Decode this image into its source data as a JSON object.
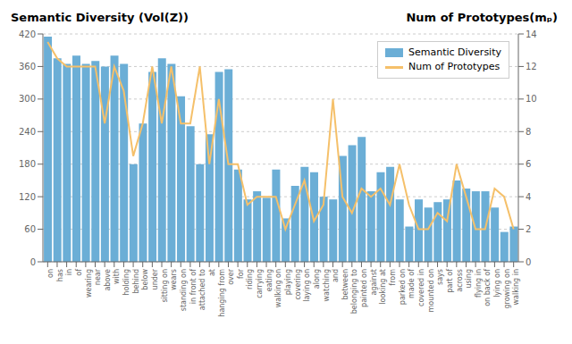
{
  "chart_data": {
    "type": "bar",
    "ylabel": "Semantic Diversity (Vol(Z))",
    "y2label": "Num of Prototypes(mₚ)",
    "categories": [
      "on",
      "has",
      "in",
      "of",
      "wearing",
      "near",
      "above",
      "with",
      "holding",
      "behind",
      "below",
      "under",
      "sitting on",
      "wears",
      "standing on",
      "in front of",
      "attached to",
      "at",
      "hanging from",
      "over",
      "for",
      "riding",
      "carrying",
      "eating",
      "walking on",
      "playing",
      "covering",
      "laying on",
      "along",
      "watching",
      "and",
      "between",
      "belonging to",
      "painted on",
      "against",
      "looking at",
      "from",
      "parked on",
      "made of",
      "covered in",
      "mounted on",
      "says",
      "part of",
      "across",
      "using",
      "flying in",
      "on back of",
      "lying on",
      "growing on",
      "walking in"
    ],
    "series": [
      {
        "name": "Semantic Diversity",
        "type": "bar",
        "color": "#6BAED6",
        "values": [
          415,
          375,
          365,
          380,
          365,
          370,
          360,
          380,
          365,
          180,
          255,
          350,
          375,
          365,
          305,
          250,
          180,
          235,
          350,
          355,
          170,
          115,
          130,
          118,
          170,
          80,
          140,
          175,
          165,
          120,
          115,
          195,
          215,
          230,
          130,
          165,
          175,
          115,
          65,
          115,
          100,
          110,
          115,
          150,
          135,
          130,
          130,
          100,
          55,
          65
        ]
      },
      {
        "name": "Num of Prototypes",
        "type": "line",
        "color": "#F5C06A",
        "axis": "y2",
        "values": [
          13.5,
          12.5,
          12,
          12,
          12,
          12,
          8.5,
          12,
          10.5,
          6.5,
          8.5,
          12,
          8.5,
          12,
          8.5,
          8.5,
          12,
          6,
          10,
          6,
          6,
          3.5,
          4,
          4,
          4,
          2,
          3.5,
          5,
          2.5,
          3.5,
          10,
          4,
          3,
          4.5,
          4,
          4.5,
          3.5,
          6,
          3.5,
          2,
          2,
          3,
          2.5,
          6,
          4,
          2,
          2,
          4.5,
          4,
          2
        ]
      }
    ],
    "ylim": [
      0,
      420
    ],
    "yticks": [
      0,
      60,
      120,
      180,
      240,
      300,
      360,
      420
    ],
    "y2lim": [
      0,
      14
    ],
    "y2ticks": [
      0,
      2,
      4,
      6,
      8,
      10,
      12,
      14
    ],
    "grid": true,
    "legend": "upper right"
  }
}
